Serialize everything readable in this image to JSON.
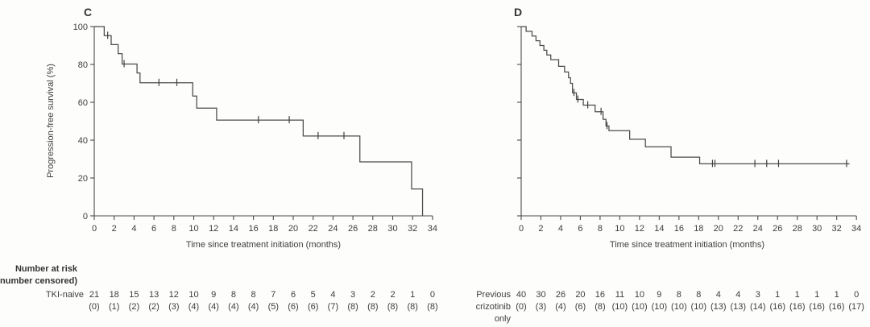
{
  "figure": {
    "background": "#fdfdfc",
    "line_color": "#4b4b4b",
    "text_color": "#3d3d3d"
  },
  "chart_data": [
    {
      "type": "line",
      "subtype": "kaplan_meier_step",
      "panel_label": "C",
      "title": "",
      "xlabel": "Time since treatment initiation (months)",
      "ylabel": "Progression-free survival (%)",
      "xlim": [
        0,
        34
      ],
      "ylim": [
        0,
        100
      ],
      "xticks": [
        0,
        2,
        4,
        6,
        8,
        10,
        12,
        14,
        16,
        18,
        20,
        22,
        24,
        26,
        28,
        30,
        32,
        34
      ],
      "yticks": [
        0,
        20,
        40,
        60,
        80,
        100
      ],
      "show_y_tick_labels": true,
      "grid": false,
      "legend": "none",
      "series": [
        {
          "name": "TKI-naive",
          "steps": [
            [
              0,
              100
            ],
            [
              1.0,
              95.2
            ],
            [
              1.7,
              90.5
            ],
            [
              2.4,
              85.7
            ],
            [
              2.8,
              80.2
            ],
            [
              4.3,
              75.5
            ],
            [
              4.6,
              70.3
            ],
            [
              9.9,
              63.3
            ],
            [
              10.3,
              56.9
            ],
            [
              12.3,
              50.6
            ],
            [
              21.0,
              42.2
            ],
            [
              26.7,
              28.5
            ],
            [
              31.9,
              14.2
            ],
            [
              33.0,
              0
            ]
          ],
          "end_time": 33.0,
          "censor_marks": [
            [
              1.35,
              95.2
            ],
            [
              3.0,
              80.2
            ],
            [
              6.5,
              70.3
            ],
            [
              8.3,
              70.3
            ],
            [
              16.5,
              50.6
            ],
            [
              19.6,
              50.6
            ],
            [
              22.5,
              42.2
            ],
            [
              25.1,
              42.2
            ]
          ]
        }
      ],
      "at_risk": {
        "header_line1": "Number at risk",
        "header_line2": "(number censored)",
        "row_label_lines": [
          "TKI-naive"
        ],
        "times": [
          0,
          2,
          4,
          6,
          8,
          10,
          12,
          14,
          16,
          18,
          20,
          22,
          24,
          26,
          28,
          30,
          32,
          34
        ],
        "counts": [
          21,
          18,
          15,
          13,
          12,
          10,
          9,
          8,
          8,
          7,
          6,
          5,
          4,
          3,
          2,
          2,
          1,
          0
        ],
        "censored": [
          "(0)",
          "(1)",
          "(2)",
          "(2)",
          "(3)",
          "(4)",
          "(4)",
          "(4)",
          "(4)",
          "(5)",
          "(6)",
          "(6)",
          "(7)",
          "(8)",
          "(8)",
          "(8)",
          "(8)",
          "(8)"
        ]
      }
    },
    {
      "type": "line",
      "subtype": "kaplan_meier_step",
      "panel_label": "D",
      "title": "",
      "xlabel": "Time since treatment initiation (months)",
      "ylabel": "",
      "xlim": [
        0,
        34
      ],
      "ylim": [
        0,
        100
      ],
      "xticks": [
        0,
        2,
        4,
        6,
        8,
        10,
        12,
        14,
        16,
        18,
        20,
        22,
        24,
        26,
        28,
        30,
        32,
        34
      ],
      "yticks": [
        0,
        20,
        40,
        60,
        80,
        100
      ],
      "show_y_tick_labels": false,
      "grid": false,
      "legend": "none",
      "series": [
        {
          "name": "Previous crizotinib only",
          "steps": [
            [
              0,
              100
            ],
            [
              0.5,
              97.5
            ],
            [
              1.1,
              95
            ],
            [
              1.5,
              92.5
            ],
            [
              1.9,
              90
            ],
            [
              2.3,
              87.5
            ],
            [
              2.6,
              85
            ],
            [
              3.0,
              82.5
            ],
            [
              3.8,
              79
            ],
            [
              4.4,
              76
            ],
            [
              4.8,
              73
            ],
            [
              5.0,
              70
            ],
            [
              5.2,
              65
            ],
            [
              5.6,
              61.5
            ],
            [
              6.3,
              58.5
            ],
            [
              7.5,
              55
            ],
            [
              8.3,
              51
            ],
            [
              8.6,
              47.5
            ],
            [
              8.9,
              45
            ],
            [
              11.0,
              40.5
            ],
            [
              12.6,
              36.5
            ],
            [
              15.2,
              31
            ],
            [
              18.1,
              27.5
            ]
          ],
          "end_time": 33.3,
          "censor_marks": [
            [
              5.35,
              65
            ],
            [
              5.75,
              61.5
            ],
            [
              6.75,
              58.5
            ],
            [
              8.1,
              55
            ],
            [
              8.7,
              47.5
            ],
            [
              19.4,
              27.5
            ],
            [
              19.65,
              27.5
            ],
            [
              23.7,
              27.5
            ],
            [
              24.9,
              27.5
            ],
            [
              26.1,
              27.5
            ],
            [
              33.0,
              27.5
            ]
          ]
        }
      ],
      "at_risk": {
        "header_line1": "",
        "header_line2": "",
        "row_label_lines": [
          "Previous",
          "crizotinib",
          "only"
        ],
        "times": [
          0,
          2,
          4,
          6,
          8,
          10,
          12,
          14,
          16,
          18,
          20,
          22,
          24,
          26,
          28,
          30,
          32,
          34
        ],
        "counts": [
          40,
          30,
          26,
          20,
          16,
          11,
          10,
          9,
          8,
          8,
          4,
          4,
          3,
          1,
          1,
          1,
          1,
          0
        ],
        "censored": [
          "(0)",
          "(3)",
          "(4)",
          "(6)",
          "(8)",
          "(10)",
          "(10)",
          "(10)",
          "(10)",
          "(10)",
          "(13)",
          "(13)",
          "(14)",
          "(16)",
          "(16)",
          "(16)",
          "(16)",
          "(17)"
        ]
      }
    }
  ]
}
